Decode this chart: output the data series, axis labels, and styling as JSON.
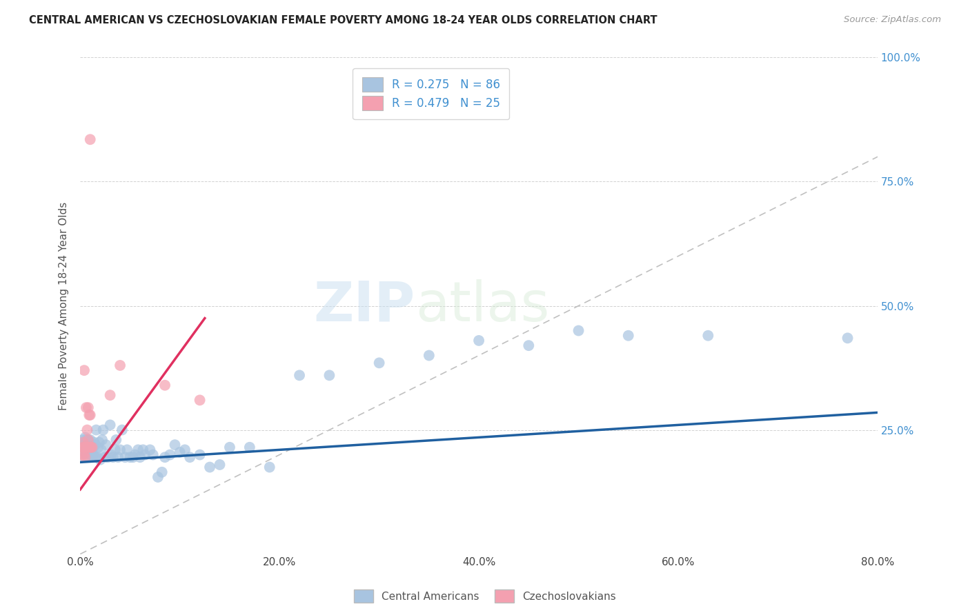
{
  "title": "CENTRAL AMERICAN VS CZECHOSLOVAKIAN FEMALE POVERTY AMONG 18-24 YEAR OLDS CORRELATION CHART",
  "source": "Source: ZipAtlas.com",
  "xlabel": "",
  "ylabel": "Female Poverty Among 18-24 Year Olds",
  "xlim": [
    0,
    0.8
  ],
  "ylim": [
    0,
    1.0
  ],
  "xticks": [
    0.0,
    0.2,
    0.4,
    0.6,
    0.8
  ],
  "xtick_labels": [
    "0.0%",
    "20.0%",
    "40.0%",
    "60.0%",
    "80.0%"
  ],
  "yticks": [
    0.0,
    0.25,
    0.5,
    0.75,
    1.0
  ],
  "ytick_labels": [
    "",
    "25.0%",
    "50.0%",
    "75.0%",
    "100.0%"
  ],
  "blue_R": 0.275,
  "blue_N": 86,
  "pink_R": 0.479,
  "pink_N": 25,
  "legend_label_blue": "Central Americans",
  "legend_label_pink": "Czechoslovakians",
  "blue_color": "#a8c4e0",
  "pink_color": "#f4a0b0",
  "blue_line_color": "#2060a0",
  "pink_line_color": "#e03060",
  "legend_text_color": "#4090d0",
  "watermark_zip": "ZIP",
  "watermark_atlas": "atlas",
  "background_color": "#ffffff",
  "blue_scatter_x": [
    0.002,
    0.003,
    0.003,
    0.004,
    0.004,
    0.005,
    0.005,
    0.005,
    0.006,
    0.006,
    0.006,
    0.007,
    0.007,
    0.007,
    0.008,
    0.008,
    0.008,
    0.009,
    0.009,
    0.009,
    0.01,
    0.01,
    0.01,
    0.011,
    0.011,
    0.012,
    0.012,
    0.013,
    0.013,
    0.014,
    0.015,
    0.015,
    0.016,
    0.017,
    0.018,
    0.019,
    0.02,
    0.021,
    0.022,
    0.023,
    0.025,
    0.026,
    0.028,
    0.03,
    0.031,
    0.033,
    0.035,
    0.036,
    0.038,
    0.04,
    0.042,
    0.045,
    0.047,
    0.05,
    0.053,
    0.055,
    0.058,
    0.06,
    0.063,
    0.065,
    0.07,
    0.073,
    0.078,
    0.082,
    0.085,
    0.09,
    0.095,
    0.1,
    0.105,
    0.11,
    0.12,
    0.13,
    0.14,
    0.15,
    0.17,
    0.19,
    0.22,
    0.25,
    0.3,
    0.35,
    0.4,
    0.45,
    0.5,
    0.55,
    0.63,
    0.77
  ],
  "blue_scatter_y": [
    0.215,
    0.22,
    0.23,
    0.195,
    0.225,
    0.205,
    0.215,
    0.235,
    0.2,
    0.22,
    0.23,
    0.195,
    0.21,
    0.225,
    0.2,
    0.215,
    0.23,
    0.195,
    0.21,
    0.225,
    0.195,
    0.21,
    0.23,
    0.2,
    0.22,
    0.195,
    0.215,
    0.2,
    0.215,
    0.225,
    0.195,
    0.22,
    0.25,
    0.195,
    0.215,
    0.225,
    0.19,
    0.21,
    0.23,
    0.25,
    0.195,
    0.22,
    0.195,
    0.26,
    0.2,
    0.195,
    0.21,
    0.23,
    0.195,
    0.21,
    0.25,
    0.195,
    0.21,
    0.195,
    0.195,
    0.2,
    0.21,
    0.195,
    0.21,
    0.2,
    0.21,
    0.2,
    0.155,
    0.165,
    0.195,
    0.2,
    0.22,
    0.205,
    0.21,
    0.195,
    0.2,
    0.175,
    0.18,
    0.215,
    0.215,
    0.175,
    0.36,
    0.36,
    0.385,
    0.4,
    0.43,
    0.42,
    0.45,
    0.44,
    0.44,
    0.435
  ],
  "pink_scatter_x": [
    0.002,
    0.003,
    0.003,
    0.004,
    0.004,
    0.004,
    0.005,
    0.005,
    0.006,
    0.006,
    0.007,
    0.007,
    0.008,
    0.008,
    0.009,
    0.009,
    0.01,
    0.01,
    0.01,
    0.011,
    0.012,
    0.03,
    0.04,
    0.085,
    0.12
  ],
  "pink_scatter_y": [
    0.2,
    0.215,
    0.225,
    0.2,
    0.215,
    0.37,
    0.195,
    0.215,
    0.215,
    0.295,
    0.215,
    0.25,
    0.23,
    0.295,
    0.215,
    0.28,
    0.215,
    0.28,
    0.835,
    0.215,
    0.215,
    0.32,
    0.38,
    0.34,
    0.31
  ],
  "blue_trend_x0": 0.0,
  "blue_trend_x1": 0.8,
  "blue_trend_y0": 0.185,
  "blue_trend_y1": 0.285,
  "pink_trend_x0": 0.0,
  "pink_trend_x1": 0.125,
  "pink_trend_y0": 0.13,
  "pink_trend_y1": 0.475
}
